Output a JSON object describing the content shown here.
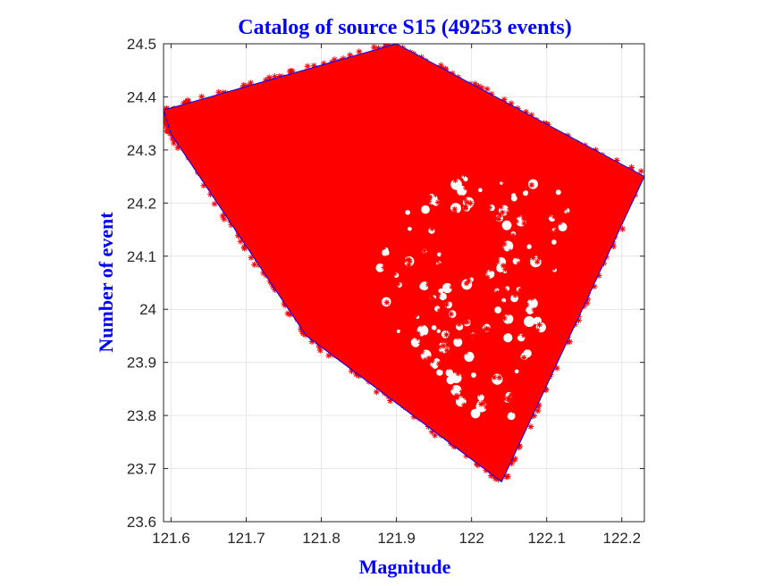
{
  "chart_data": {
    "type": "scatter",
    "title": "Catalog of source S15 (49253 events)",
    "xlabel": "Magnitude",
    "ylabel": "Number of event",
    "xlim": [
      121.59,
      122.23
    ],
    "ylim": [
      23.6,
      24.5
    ],
    "xticks": [
      121.6,
      121.7,
      121.8,
      121.9,
      122,
      122.1,
      122.2
    ],
    "xtick_labels": [
      "121.6",
      "121.7",
      "121.8",
      "121.9",
      "122",
      "122.1",
      "122.2"
    ],
    "yticks": [
      23.6,
      23.7,
      23.8,
      23.9,
      24,
      24.1,
      24.2,
      24.3,
      24.4,
      24.5
    ],
    "ytick_labels": [
      "23.6",
      "23.7",
      "23.8",
      "23.9",
      "24",
      "24.1",
      "24.2",
      "24.3",
      "24.4",
      "24.5"
    ],
    "grid": true,
    "marker": "asterisk",
    "colors": {
      "points": "#ff0000",
      "boundary": "#0000ff",
      "title": "#0000ff",
      "labels": "#0000ff",
      "grid": "#e6e6e6",
      "axes": "#262626"
    },
    "series": [
      {
        "kind": "events",
        "region_polygon": [
          [
            121.59,
            24.375
          ],
          [
            121.9,
            24.5
          ],
          [
            122.23,
            24.25
          ],
          [
            122.04,
            23.675
          ],
          [
            121.78,
            23.95
          ],
          [
            121.6,
            24.33
          ]
        ],
        "sparse_region": [
          [
            121.99,
            24.27
          ],
          [
            122.14,
            24.22
          ],
          [
            122.05,
            23.73
          ],
          [
            121.9,
            23.95
          ],
          [
            121.86,
            24.12
          ]
        ]
      },
      {
        "kind": "boundary",
        "x": [
          121.59,
          121.9,
          122.23,
          122.04,
          121.78,
          121.6,
          121.59
        ],
        "y": [
          24.375,
          24.5,
          24.25,
          23.675,
          23.95,
          24.33,
          24.375
        ]
      }
    ]
  }
}
